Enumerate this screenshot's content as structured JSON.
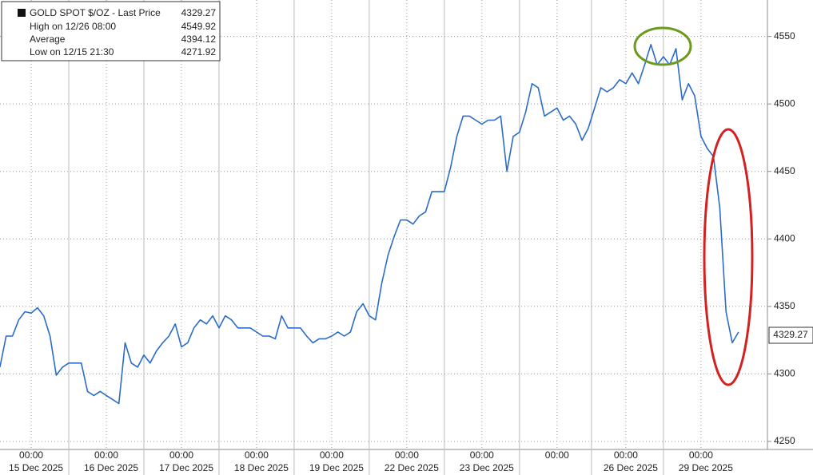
{
  "chart_data": {
    "type": "line",
    "legend": {
      "name": "GOLD SPOT $/OZ - Last Price",
      "last": 4329.27,
      "rows": [
        {
          "label": "High on 12/26 08:00",
          "value": 4549.92
        },
        {
          "label": "Average",
          "value": 4394.12
        },
        {
          "label": "Low on 12/15 21:30",
          "value": 4271.92
        }
      ]
    },
    "categories": [
      null,
      null,
      null,
      null,
      null,
      "00:00",
      null,
      null,
      null,
      null,
      null,
      null,
      null,
      null,
      null,
      null,
      null,
      "00:00",
      null,
      null,
      null,
      null,
      null,
      null,
      null,
      null,
      null,
      null,
      null,
      "00:00",
      null,
      null,
      null,
      null,
      null,
      null,
      null,
      null,
      null,
      null,
      null,
      "00:00",
      null,
      null,
      null,
      null,
      null,
      null,
      null,
      null,
      null,
      null,
      null,
      "00:00",
      null,
      null,
      null,
      null,
      null,
      null,
      null,
      null,
      null,
      null,
      null,
      "00:00",
      null,
      null,
      null,
      null,
      null,
      null,
      null,
      null,
      null,
      null,
      null,
      "00:00",
      null,
      null,
      null,
      null,
      null,
      null,
      null,
      null,
      null,
      null,
      null,
      "00:00",
      null,
      null,
      null,
      null,
      null,
      null,
      null,
      null,
      null,
      null,
      "00:00",
      null,
      null,
      null,
      null,
      null,
      null,
      null,
      null,
      null,
      null,
      null,
      "00:00",
      null,
      null,
      null,
      null,
      null,
      null
    ],
    "dates": [
      "15 Dec 2025",
      "16 Dec 2025",
      "17 Dec 2025",
      "18 Dec 2025",
      "19 Dec 2025",
      "22 Dec 2025",
      "23 Dec 2025",
      null,
      "26 Dec 2025",
      "29 Dec 2025"
    ],
    "series": [
      {
        "name": "GOLD SPOT $/OZ - Last Price",
        "color": "#2a6cc8",
        "values": [
          4305,
          4328,
          4328,
          4340,
          4346,
          4345,
          4349,
          4343,
          4328,
          4299,
          4305,
          4308,
          4308,
          4308,
          4287,
          4284,
          4287,
          4284,
          4281,
          4278,
          4323,
          4308,
          4305,
          4314,
          4308,
          4317,
          4323,
          4328,
          4337,
          4320,
          4323,
          4334,
          4340,
          4337,
          4343,
          4334,
          4343,
          4340,
          4334,
          4334,
          4334,
          4331,
          4328,
          4328,
          4326,
          4343,
          4334,
          4334,
          4334,
          4328,
          4323,
          4326,
          4326,
          4328,
          4331,
          4328,
          4331,
          4346,
          4352,
          4343,
          4340,
          4367,
          4388,
          4402,
          4414,
          4414,
          4411,
          4417,
          4420,
          4435,
          4435,
          4435,
          4453,
          4476,
          4491,
          4491,
          4488,
          4485,
          4488,
          4488,
          4491,
          4450,
          4476,
          4479,
          4494,
          4515,
          4512,
          4491,
          4494,
          4497,
          4488,
          4491,
          4485,
          4473,
          4482,
          4497,
          4512,
          4509,
          4512,
          4518,
          4515,
          4523,
          4515,
          4529,
          4544,
          4529,
          4535,
          4529,
          4541,
          4503,
          4515,
          4506,
          4476,
          4467,
          4461,
          4423,
          4346,
          4323,
          4331
        ]
      }
    ],
    "ylim": [
      4244,
      4577
    ],
    "yticks": [
      4250,
      4300,
      4350,
      4400,
      4450,
      4500,
      4550
    ],
    "grid": true
  }
}
